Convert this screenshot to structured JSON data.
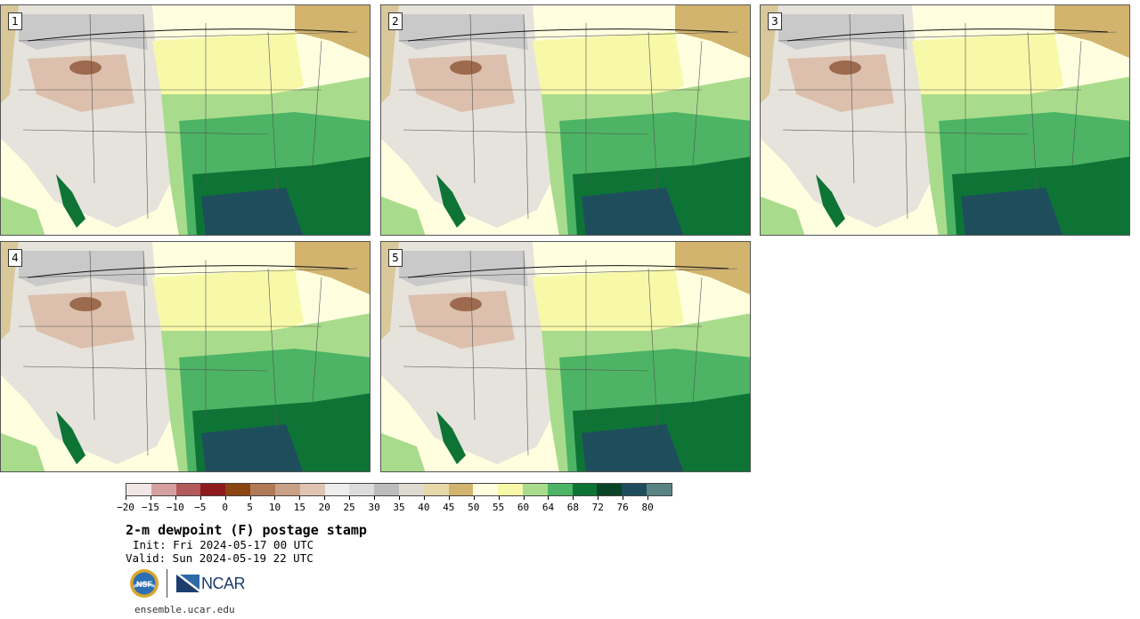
{
  "panels": [
    {
      "label": "1"
    },
    {
      "label": "2"
    },
    {
      "label": "3"
    },
    {
      "label": "4"
    },
    {
      "label": "5"
    }
  ],
  "colorbar": {
    "colors": [
      "#f1e6e6",
      "#d7a0a0",
      "#b35a5a",
      "#8e1a1e",
      "#8b4512",
      "#b07a56",
      "#c8a086",
      "#e0c4b2",
      "#ededed",
      "#dcdcdc",
      "#bcbcbc",
      "#dedcd0",
      "#e6d8a8",
      "#d2b46e",
      "#ffffe0",
      "#f7f9a8",
      "#a8dc8c",
      "#4cb464",
      "#0e7436",
      "#0a4426",
      "#1e4e5c",
      "#5a8484"
    ],
    "ticks": [
      "−20",
      "−15",
      "−10",
      "−5",
      "0",
      "5",
      "10",
      "15",
      "20",
      "25",
      "30",
      "35",
      "40",
      "45",
      "50",
      "55",
      "60",
      "64",
      "68",
      "72",
      "76",
      "80"
    ]
  },
  "title": "2-m dewpoint (F) postage stamp",
  "init": "Init: Fri 2024-05-17 00 UTC",
  "valid": "Valid: Sun 2024-05-19 22 UTC",
  "logos": {
    "nsf": "NSF",
    "ncar": "NCAR"
  },
  "site": "ensemble.ucar.edu"
}
